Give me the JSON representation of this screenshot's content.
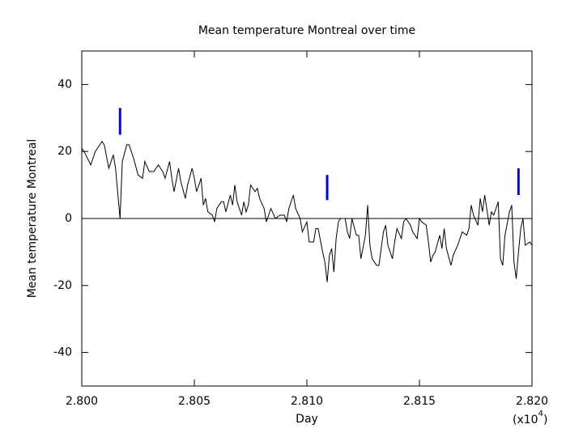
{
  "chart_data": {
    "type": "line",
    "title": "Mean temperature Montreal over time",
    "x_label": "Day",
    "y_label": "Mean temperature Montreal",
    "x_multiplier": {
      "prefix": "(x10",
      "exponent": "4",
      "suffix": ")"
    },
    "xlim": [
      28000,
      28200
    ],
    "ylim": [
      -50,
      50
    ],
    "xticks": [
      {
        "value": 28000,
        "label": "2.800"
      },
      {
        "value": 28050,
        "label": "2.805"
      },
      {
        "value": 28100,
        "label": "2.810"
      },
      {
        "value": 28150,
        "label": "2.815"
      },
      {
        "value": 28200,
        "label": "2.820"
      }
    ],
    "yticks": [
      -40,
      -20,
      0,
      20,
      40
    ],
    "zero_line": true,
    "series": [
      {
        "color": "#000000",
        "x": [
          28000,
          28001,
          28004,
          28006,
          28009,
          28010,
          28012,
          28014,
          28015,
          28017,
          28018,
          28020,
          28021,
          28023,
          28025,
          28027,
          28028,
          28030,
          28032,
          28034,
          28036,
          28037,
          28039,
          28040,
          28041,
          28043,
          28044,
          28046,
          28047,
          28049,
          28050,
          28051,
          28053,
          28054,
          28055,
          28056,
          28058,
          28059,
          28060,
          28062,
          28063,
          28064,
          28066,
          28067,
          28068,
          28069,
          28071,
          28072,
          28073,
          28074,
          28075,
          28077,
          28078,
          28079,
          28081,
          28082,
          28084,
          28086,
          28088,
          28090,
          28091,
          28092,
          28094,
          28095,
          28097,
          28098,
          28100,
          28101,
          28103,
          28104,
          28105,
          28107,
          28108,
          28109,
          28110,
          28111,
          28112,
          28113,
          28114,
          28115,
          28117,
          28118,
          28119,
          28120,
          28122,
          28123,
          28124,
          28126,
          28127,
          28128,
          28129,
          28131,
          28132,
          28133,
          28134,
          28135,
          28136,
          28138,
          28139,
          28140,
          28142,
          28143,
          28144,
          28146,
          28147,
          28149,
          28150,
          28151,
          28153,
          28154,
          28155,
          28156,
          28157,
          28159,
          28160,
          28161,
          28162,
          28164,
          28165,
          28167,
          28168,
          28169,
          28171,
          28172,
          28173,
          28174,
          28176,
          28177,
          28178,
          28179,
          28181,
          28182,
          28183,
          28185,
          28186,
          28187,
          28188,
          28190,
          28191,
          28192,
          28193,
          28194,
          28195,
          28196,
          28197,
          28199,
          28200
        ],
        "values": [
          21,
          20,
          16,
          20,
          23,
          22,
          15,
          19,
          15,
          0,
          17,
          22,
          22,
          18,
          13,
          12,
          17,
          14,
          14,
          16,
          14,
          12,
          17,
          12,
          8,
          15,
          11,
          6,
          10,
          15,
          12,
          8,
          12,
          4,
          6,
          2,
          1,
          -1,
          3,
          5,
          5,
          2,
          7,
          4,
          10,
          5,
          1,
          5,
          2,
          4,
          10,
          8,
          9,
          6,
          3,
          -1,
          3,
          0,
          1,
          1,
          -1,
          3,
          7,
          3,
          0,
          -4,
          -1,
          -7,
          -7,
          -3,
          -3,
          -10,
          -13,
          -19,
          -11,
          -9,
          -16,
          -6,
          -1,
          0,
          0,
          -4,
          -6,
          0,
          -5,
          -5,
          -12,
          -5,
          4,
          -8,
          -12,
          -14,
          -14,
          -9,
          -4,
          -2,
          -8,
          -12,
          -7,
          -3,
          -6,
          -1,
          0,
          -2,
          -4,
          -6,
          0,
          -1,
          -2,
          -7,
          -13,
          -11,
          -10,
          -5,
          -9,
          -3,
          -9,
          -14,
          -11,
          -8,
          -6,
          -4,
          -5,
          -3,
          4,
          1,
          -2,
          6,
          2,
          7,
          -2,
          2,
          1,
          5,
          -12,
          -14,
          -5,
          2,
          4,
          -13,
          -18,
          -10,
          -3,
          0,
          -8,
          -7,
          -8
        ]
      }
    ],
    "markers": {
      "color": "#0000ff",
      "x": [
        28017,
        28109,
        28194
      ],
      "low": [
        25,
        5.5,
        7
      ],
      "high": [
        33,
        13,
        15
      ]
    }
  }
}
